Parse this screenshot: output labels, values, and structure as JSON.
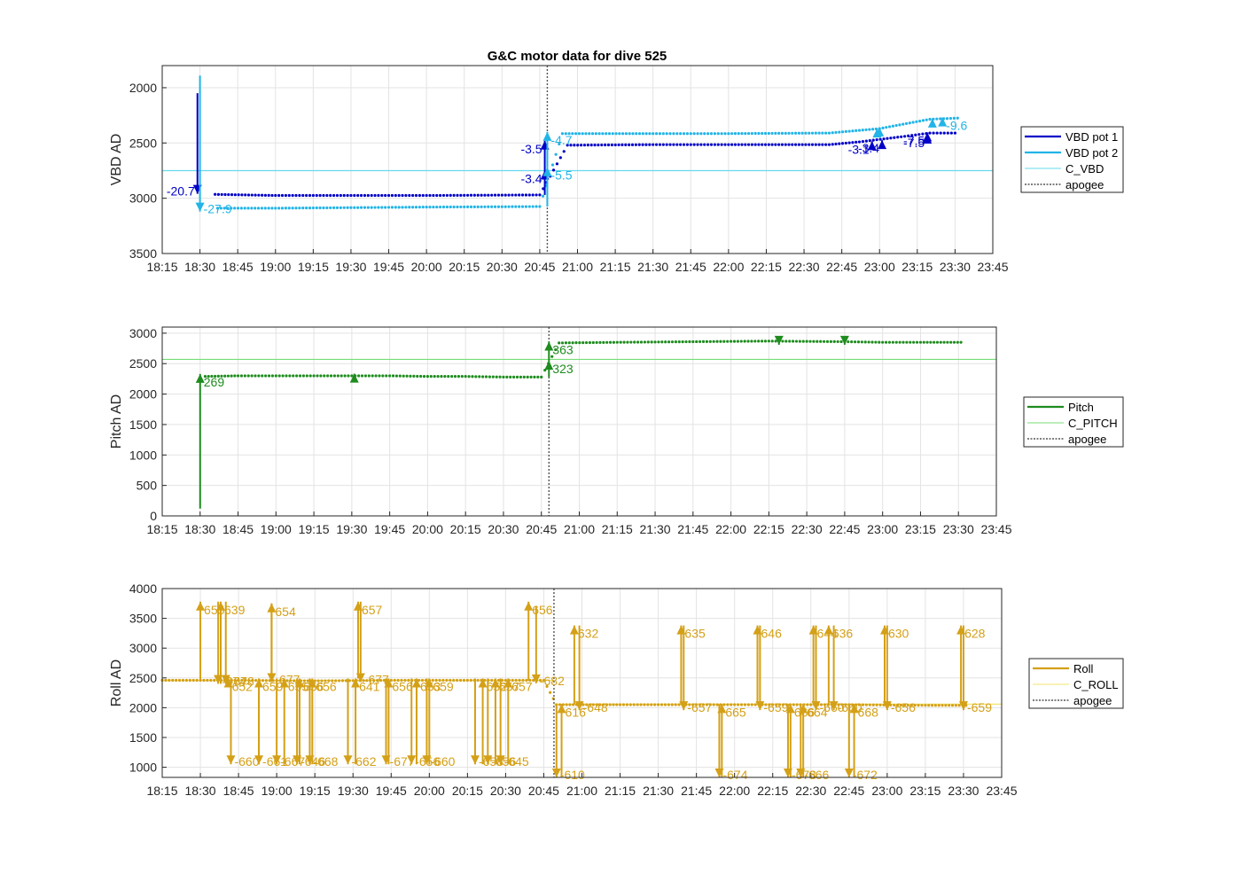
{
  "title": "G&C motor data for dive 525",
  "x_ticks": [
    "18:15",
    "18:30",
    "18:45",
    "19:00",
    "19:15",
    "19:30",
    "19:45",
    "20:00",
    "20:15",
    "20:30",
    "20:45",
    "21:00",
    "21:15",
    "21:30",
    "21:45",
    "22:00",
    "22:15",
    "22:30",
    "22:45",
    "23:00",
    "23:15",
    "23:30",
    "23:45"
  ],
  "colors": {
    "vbd1": "#0000C8",
    "vbd2": "#22B4E6",
    "c_vbd": "#66D9EE",
    "pitch": "#1E8C1E",
    "c_pitch": "#77DD77",
    "roll": "#D4A017",
    "c_roll": "#F2E36B",
    "apogee": "#555555",
    "grid": "#E3E3E3"
  },
  "chart_data": [
    {
      "type": "line",
      "ylabel": "VBD AD",
      "ylim": [
        3500,
        1800
      ],
      "yticks": [
        2000,
        2500,
        3000,
        3500
      ],
      "xlim": [
        "18:15",
        "23:45"
      ],
      "legend": [
        "VBD pot 1",
        "VBD pot 2",
        "C_VBD",
        "apogee"
      ],
      "legend_position": "outside-right",
      "grid": true,
      "apogee": "20:48",
      "reference_lines": [
        {
          "name": "C_VBD",
          "y": 2750
        }
      ],
      "series": [
        {
          "name": "VBD pot 1",
          "points": [
            [
              "18:36",
              2965
            ],
            [
              "19:00",
              2975
            ],
            [
              "19:30",
              2975
            ],
            [
              "20:00",
              2975
            ],
            [
              "20:45",
              2970
            ],
            [
              "20:56",
              2520
            ],
            [
              "21:30",
              2515
            ],
            [
              "22:00",
              2515
            ],
            [
              "22:40",
              2515
            ],
            [
              "22:52",
              2490
            ],
            [
              "23:10",
              2440
            ],
            [
              "23:20",
              2410
            ],
            [
              "23:30",
              2410
            ]
          ]
        },
        {
          "name": "VBD pot 2",
          "points": [
            [
              "18:37",
              3090
            ],
            [
              "19:00",
              3090
            ],
            [
              "19:30",
              3085
            ],
            [
              "20:00",
              3080
            ],
            [
              "20:45",
              3075
            ],
            [
              "20:54",
              2415
            ],
            [
              "21:30",
              2415
            ],
            [
              "22:00",
              2415
            ],
            [
              "22:40",
              2410
            ],
            [
              "23:00",
              2370
            ],
            [
              "23:20",
              2285
            ],
            [
              "23:31",
              2275
            ]
          ]
        }
      ],
      "moves": [
        {
          "series": "VBD pot 1",
          "time": "18:29",
          "from": 2050,
          "to": 2960,
          "label": "-20.7"
        },
        {
          "series": "VBD pot 2",
          "time": "18:30",
          "from": 1890,
          "to": 3120,
          "label": "-27.9"
        },
        {
          "series": "VBD pot 1",
          "time": "20:47",
          "from": 2970,
          "to": 2750,
          "label": "-3.4"
        },
        {
          "series": "VBD pot 1",
          "time": "20:47",
          "from": 2750,
          "to": 2480,
          "label": "-3.5"
        },
        {
          "series": "VBD pot 2",
          "time": "20:48",
          "from": 3075,
          "to": 2720,
          "label": "-5.5"
        },
        {
          "series": "VBD pot 2",
          "time": "20:48",
          "from": 2720,
          "to": 2400,
          "label": "-4.7"
        },
        {
          "series": "VBD pot 1",
          "time": "22:57",
          "from": 2525,
          "to": 2485,
          "label": "-3.1"
        },
        {
          "series": "VBD pot 2",
          "time": "22:59",
          "from": 2405,
          "to": 2370,
          "label": ""
        },
        {
          "series": "VBD pot 2",
          "time": "23:00",
          "from": 2390,
          "to": 2360,
          "label": ""
        },
        {
          "series": "VBD pot 1",
          "time": "23:01",
          "from": 2515,
          "to": 2475,
          "label": "-3.4"
        },
        {
          "series": "VBD pot 1",
          "time": "23:19",
          "from": 2460,
          "to": 2425,
          "label": "-7.5"
        },
        {
          "series": "VBD pot 1",
          "time": "23:19",
          "from": 2445,
          "to": 2405,
          "label": "-7.5"
        },
        {
          "series": "VBD pot 2",
          "time": "23:21",
          "from": 2320,
          "to": 2280,
          "label": ""
        },
        {
          "series": "VBD pot 2",
          "time": "23:25",
          "from": 2300,
          "to": 2270,
          "label": "-9.6"
        }
      ]
    },
    {
      "type": "line",
      "ylabel": "Pitch AD",
      "ylim": [
        0,
        3100
      ],
      "yticks": [
        0,
        500,
        1000,
        1500,
        2000,
        2500,
        3000
      ],
      "xlim": [
        "18:15",
        "23:45"
      ],
      "legend": [
        "Pitch",
        "C_PITCH",
        "apogee"
      ],
      "legend_position": "outside-right",
      "grid": true,
      "apogee": "20:48",
      "reference_lines": [
        {
          "name": "C_PITCH",
          "y": 2570
        }
      ],
      "series": [
        {
          "name": "Pitch",
          "points": [
            [
              "18:32",
              2290
            ],
            [
              "18:45",
              2300
            ],
            [
              "19:00",
              2300
            ],
            [
              "19:15",
              2300
            ],
            [
              "19:30",
              2300
            ],
            [
              "19:45",
              2300
            ],
            [
              "20:00",
              2290
            ],
            [
              "20:15",
              2290
            ],
            [
              "20:30",
              2280
            ],
            [
              "20:45",
              2280
            ],
            [
              "20:52",
              2840
            ],
            [
              "21:15",
              2850
            ],
            [
              "21:45",
              2860
            ],
            [
              "22:15",
              2870
            ],
            [
              "22:45",
              2860
            ],
            [
              "23:00",
              2850
            ],
            [
              "23:15",
              2850
            ],
            [
              "23:31",
              2850
            ]
          ]
        }
      ],
      "moves": [
        {
          "time": "18:30",
          "from": 120,
          "to": 2330,
          "label": "269"
        },
        {
          "time": "19:31",
          "from": 2290,
          "to": 2335,
          "label": ""
        },
        {
          "time": "20:48",
          "from": 2280,
          "to": 2545,
          "label": "323"
        },
        {
          "time": "20:48",
          "from": 2545,
          "to": 2860,
          "label": "363"
        },
        {
          "time": "22:19",
          "from": 2860,
          "to": 2810,
          "label": ""
        },
        {
          "time": "22:45",
          "from": 2860,
          "to": 2810,
          "label": ""
        }
      ]
    },
    {
      "type": "line",
      "ylabel": "Roll AD",
      "ylim": [
        830,
        4000
      ],
      "yticks": [
        1000,
        1500,
        2000,
        2500,
        3000,
        3500,
        4000
      ],
      "xlim": [
        "18:15",
        "23:45"
      ],
      "legend": [
        "Roll",
        "C_ROLL",
        "apogee"
      ],
      "legend_position": "outside-right",
      "grid": true,
      "apogee": "20:49",
      "reference_lines": [
        {
          "name": "C_ROLL",
          "y_before_apogee": 2460,
          "y_after_apogee": 2060
        }
      ],
      "series": [
        {
          "name": "Roll",
          "points": [
            [
              "18:15",
              2460
            ],
            [
              "18:45",
              2460
            ],
            [
              "19:15",
              2450
            ],
            [
              "19:45",
              2460
            ],
            [
              "20:15",
              2460
            ],
            [
              "20:45",
              2460
            ],
            [
              "20:50",
              2050
            ],
            [
              "21:15",
              2050
            ],
            [
              "21:45",
              2050
            ],
            [
              "22:15",
              2050
            ],
            [
              "22:45",
              2050
            ],
            [
              "23:15",
              2040
            ],
            [
              "23:31",
              2040
            ]
          ]
        }
      ],
      "moves": [
        {
          "time": "18:30",
          "from": 2460,
          "to": 3780,
          "label": "655"
        },
        {
          "time": "18:37",
          "from": 3780,
          "to": 2400,
          "label": "-674"
        },
        {
          "time": "18:38",
          "from": 2400,
          "to": 3780,
          "label": "639"
        },
        {
          "time": "18:40",
          "from": 3780,
          "to": 2400,
          "label": "-678"
        },
        {
          "time": "18:41",
          "from": 2400,
          "to": 2490,
          "label": "652"
        },
        {
          "time": "18:42",
          "from": 2490,
          "to": 1050,
          "label": "-660"
        },
        {
          "time": "18:53",
          "from": 2490,
          "to": 1050,
          "label": "-661"
        },
        {
          "time": "18:53",
          "from": 1050,
          "to": 2490,
          "label": "659"
        },
        {
          "time": "18:58",
          "from": 2490,
          "to": 3750,
          "label": "654"
        },
        {
          "time": "18:58",
          "from": 3750,
          "to": 2430,
          "label": "-677"
        },
        {
          "time": "19:00",
          "from": 2490,
          "to": 1050,
          "label": "-667"
        },
        {
          "time": "19:03",
          "from": 1050,
          "to": 2490,
          "label": "655"
        },
        {
          "time": "19:08",
          "from": 2490,
          "to": 1050,
          "label": "-646"
        },
        {
          "time": "19:09",
          "from": 1050,
          "to": 2490,
          "label": "656"
        },
        {
          "time": "19:13",
          "from": 2490,
          "to": 1050,
          "label": "-668"
        },
        {
          "time": "19:14",
          "from": 1050,
          "to": 2490,
          "label": "656"
        },
        {
          "time": "19:28",
          "from": 2490,
          "to": 1050,
          "label": "-662"
        },
        {
          "time": "19:31",
          "from": 1050,
          "to": 2490,
          "label": "641"
        },
        {
          "time": "19:32",
          "from": 2490,
          "to": 3780,
          "label": "657"
        },
        {
          "time": "19:33",
          "from": 3780,
          "to": 2430,
          "label": "-677"
        },
        {
          "time": "19:43",
          "from": 2490,
          "to": 1050,
          "label": "-677"
        },
        {
          "time": "19:44",
          "from": 1050,
          "to": 2490,
          "label": "656"
        },
        {
          "time": "19:53",
          "from": 2490,
          "to": 1050,
          "label": "-656"
        },
        {
          "time": "19:55",
          "from": 1050,
          "to": 2490,
          "label": "653"
        },
        {
          "time": "19:59",
          "from": 2490,
          "to": 1050,
          "label": "-660"
        },
        {
          "time": "20:00",
          "from": 1050,
          "to": 2490,
          "label": "659"
        },
        {
          "time": "20:18",
          "from": 2490,
          "to": 1050,
          "label": "-658"
        },
        {
          "time": "20:21",
          "from": 1050,
          "to": 2490,
          "label": "652"
        },
        {
          "time": "20:23",
          "from": 2490,
          "to": 1050,
          "label": "-656"
        },
        {
          "time": "20:26",
          "from": 1050,
          "to": 2490,
          "label": "657"
        },
        {
          "time": "20:28",
          "from": 2490,
          "to": 1050,
          "label": "-645"
        },
        {
          "time": "20:31",
          "from": 1050,
          "to": 2490,
          "label": "657"
        },
        {
          "time": "20:39",
          "from": 2460,
          "to": 3780,
          "label": "656"
        },
        {
          "time": "20:42",
          "from": 3710,
          "to": 2410,
          "label": "-682"
        },
        {
          "time": "20:50",
          "from": 2050,
          "to": 830,
          "label": "-610"
        },
        {
          "time": "20:52",
          "from": 830,
          "to": 2060,
          "label": "616"
        },
        {
          "time": "20:57",
          "from": 2060,
          "to": 3380,
          "label": "632"
        },
        {
          "time": "20:59",
          "from": 3380,
          "to": 1960,
          "label": "-648"
        },
        {
          "time": "21:39",
          "from": 2060,
          "to": 3380,
          "label": "635"
        },
        {
          "time": "21:40",
          "from": 3380,
          "to": 1960,
          "label": "-657"
        },
        {
          "time": "21:54",
          "from": 2060,
          "to": 830,
          "label": "-674"
        },
        {
          "time": "21:55",
          "from": 830,
          "to": 2060,
          "label": "665"
        },
        {
          "time": "22:09",
          "from": 2060,
          "to": 3380,
          "label": "646"
        },
        {
          "time": "22:10",
          "from": 3380,
          "to": 1960,
          "label": "-659"
        },
        {
          "time": "22:21",
          "from": 2060,
          "to": 830,
          "label": "-673"
        },
        {
          "time": "22:22",
          "from": 830,
          "to": 2060,
          "label": "666"
        },
        {
          "time": "22:26",
          "from": 2060,
          "to": 830,
          "label": "-666"
        },
        {
          "time": "22:27",
          "from": 830,
          "to": 2060,
          "label": "664"
        },
        {
          "time": "22:31",
          "from": 2060,
          "to": 3380,
          "label": "644"
        },
        {
          "time": "22:32",
          "from": 3380,
          "to": 1960,
          "label": "-660"
        },
        {
          "time": "22:37",
          "from": 2060,
          "to": 3380,
          "label": "636"
        },
        {
          "time": "22:39",
          "from": 3380,
          "to": 1960,
          "label": "-660"
        },
        {
          "time": "22:45",
          "from": 2060,
          "to": 830,
          "label": "-672"
        },
        {
          "time": "22:47",
          "from": 830,
          "to": 2060,
          "label": "668"
        },
        {
          "time": "22:59",
          "from": 2060,
          "to": 3380,
          "label": "630"
        },
        {
          "time": "23:00",
          "from": 3380,
          "to": 1960,
          "label": "-656"
        },
        {
          "time": "23:29",
          "from": 2060,
          "to": 3380,
          "label": "628"
        },
        {
          "time": "23:30",
          "from": 3380,
          "to": 1960,
          "label": "-659"
        }
      ]
    }
  ]
}
